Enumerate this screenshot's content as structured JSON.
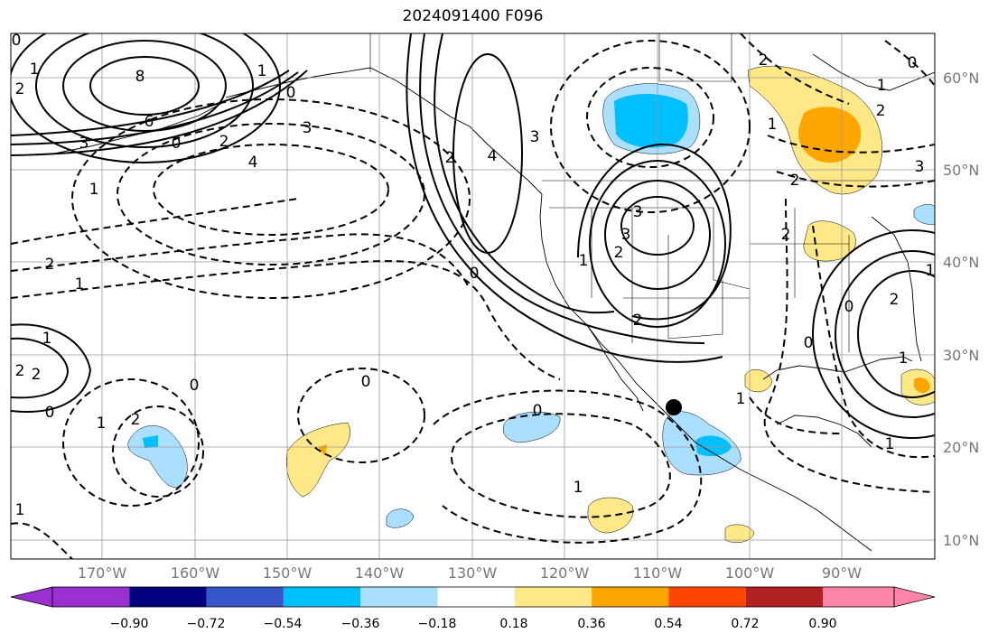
{
  "title": "2024091400 F096",
  "latitude_labels": [
    "60°N",
    "50°N",
    "40°N",
    "30°N",
    "20°N",
    "10°N"
  ],
  "longitude_labels": [
    "170°W",
    "160°W",
    "150°W",
    "140°W",
    "130°W",
    "120°W",
    "110°W",
    "100°W",
    "90°W"
  ],
  "colorbar": {
    "ticks": [
      "−0.90",
      "−0.72",
      "−0.54",
      "−0.36",
      "−0.18",
      "0.18",
      "0.36",
      "0.54",
      "0.72",
      "0.90"
    ],
    "colors": [
      "#9b30d0",
      "#000080",
      "#3456c8",
      "#00bfff",
      "#aadfff",
      "#ffffff",
      "#ffe887",
      "#ffa500",
      "#ff4500",
      "#b22222",
      "#ff85a8"
    ]
  },
  "contour_labels": [
    "8",
    "6",
    "3",
    "2",
    "0",
    "1",
    "3",
    "4",
    "3",
    "2",
    "1",
    "2",
    "1",
    "0",
    "1",
    "2",
    "3",
    "4",
    "1",
    "2",
    "3",
    "2",
    "0",
    "1",
    "2",
    "0",
    "1",
    "2",
    "2",
    "0",
    "1",
    "0",
    "0",
    "2",
    "1",
    "0",
    "1",
    "1",
    "2",
    "1",
    "0",
    "1",
    "1",
    "2",
    "0",
    "2",
    "1",
    "2",
    "3",
    "0"
  ],
  "marker": "storm-center"
}
